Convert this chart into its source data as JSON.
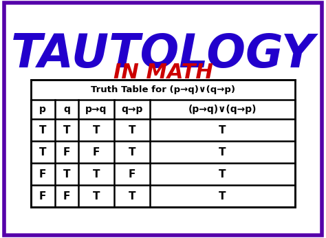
{
  "title1": "TAUTOLOGY",
  "title2": "IN MATH",
  "title1_color": "#2200CC",
  "title2_color": "#CC0000",
  "background_color": "#FFFFFF",
  "border_color": "#5500AA",
  "table_header": "Truth Table for (p→q)∨(q→p)",
  "col_headers": [
    "p",
    "q",
    "p→q",
    "q→p",
    "(p→q)∨(q→p)"
  ],
  "rows": [
    [
      "T",
      "T",
      "T",
      "T",
      "T"
    ],
    [
      "T",
      "F",
      "F",
      "T",
      "T"
    ],
    [
      "F",
      "T",
      "T",
      "F",
      "T"
    ],
    [
      "F",
      "F",
      "T",
      "T",
      "T"
    ]
  ]
}
